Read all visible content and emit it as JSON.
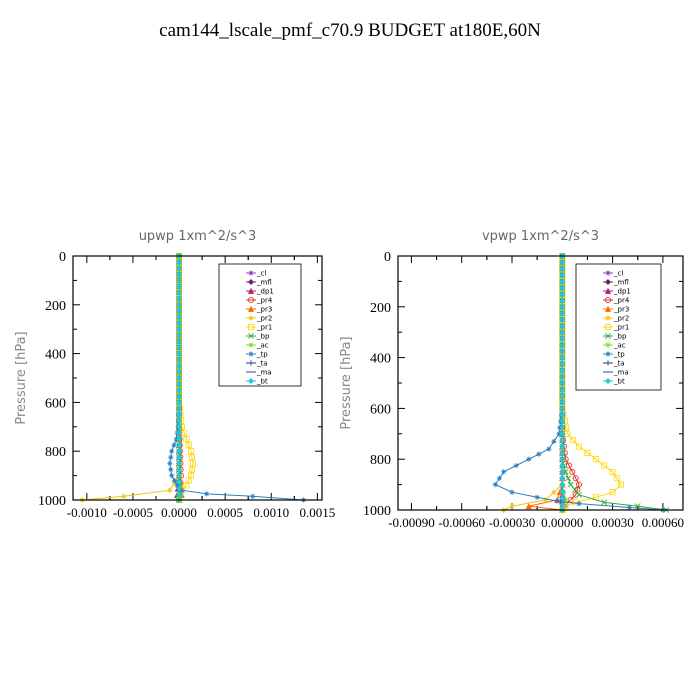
{
  "title": "cam144_lscale_pmf_c70.9  BUDGET at180E,60N",
  "chart_data": [
    {
      "type": "line",
      "title": "upwp  1xm^2/s^3",
      "xlabel": "",
      "ylabel": "Pressure [hPa]",
      "xlim": [
        -0.00115,
        0.00155
      ],
      "ylim": [
        1000,
        0
      ],
      "xticks": [
        -0.001,
        -0.0005,
        0.0,
        0.0005,
        0.001,
        0.0015
      ],
      "xtick_labels": [
        "-0.0010",
        "-0.0005",
        "0.0000",
        "0.0005",
        "0.0010",
        "0.0015"
      ],
      "yticks": [
        0,
        200,
        400,
        600,
        800,
        1000
      ],
      "ytick_labels": [
        "0",
        "200",
        "400",
        "600",
        "800",
        "1000"
      ],
      "legend": "top-right",
      "series": [
        {
          "name": "_cl",
          "color": "#9b30c8",
          "marker": "star",
          "x": [
            0,
            0,
            0,
            0,
            0,
            0,
            0,
            0,
            0,
            0,
            0
          ],
          "y": [
            0,
            100,
            200,
            300,
            400,
            500,
            600,
            700,
            800,
            900,
            1000
          ]
        },
        {
          "name": "_mfl",
          "color": "#6b1f6b",
          "marker": "diamond",
          "x": [
            0,
            0,
            0,
            0,
            0,
            0,
            0,
            0,
            0,
            0,
            0
          ],
          "y": [
            0,
            100,
            200,
            300,
            400,
            500,
            600,
            700,
            800,
            900,
            1000
          ]
        },
        {
          "name": "_dp1",
          "color": "#b0226b",
          "marker": "triangle",
          "x": [
            0,
            0,
            0,
            0,
            0,
            0,
            0,
            0,
            0,
            0,
            -2e-05,
            0
          ],
          "y": [
            0,
            100,
            200,
            300,
            400,
            500,
            600,
            700,
            800,
            900,
            980,
            1000
          ]
        },
        {
          "name": "_pr4",
          "color": "#e0301e",
          "marker": "circle",
          "x": [
            0,
            0,
            0,
            0,
            0,
            0,
            0,
            0,
            1e-05,
            2e-05,
            1e-05,
            0
          ],
          "y": [
            0,
            100,
            200,
            300,
            400,
            500,
            600,
            700,
            800,
            900,
            960,
            1000
          ]
        },
        {
          "name": "_pr3",
          "color": "#ff6a00",
          "marker": "triangle",
          "x": [
            0,
            0,
            0,
            0,
            0,
            0,
            0,
            0,
            0,
            0,
            3e-05,
            0
          ],
          "y": [
            0,
            100,
            200,
            300,
            400,
            500,
            600,
            700,
            800,
            900,
            980,
            1000
          ]
        },
        {
          "name": "_pr2",
          "color": "#f5c400",
          "marker": "star",
          "x": [
            0,
            0,
            0,
            0,
            0,
            0,
            0,
            0,
            0,
            0,
            -0.0001,
            -0.0006,
            -0.00105
          ],
          "y": [
            0,
            100,
            200,
            300,
            400,
            500,
            600,
            700,
            800,
            900,
            960,
            985,
            1000
          ]
        },
        {
          "name": "_pr1",
          "color": "#ffd700",
          "marker": "square",
          "x": [
            0,
            0,
            0,
            0,
            0,
            0,
            0,
            3e-05,
            8e-05,
            0.00013,
            0.00015,
            0.00013,
            8e-05,
            3e-05,
            1e-05,
            0
          ],
          "y": [
            0,
            100,
            200,
            300,
            400,
            500,
            600,
            700,
            750,
            800,
            850,
            900,
            940,
            960,
            980,
            1000
          ]
        },
        {
          "name": "_bp",
          "color": "#33aa33",
          "marker": "cross",
          "x": [
            0,
            0,
            0,
            0,
            0,
            0,
            0,
            0,
            0,
            0,
            2e-05,
            0
          ],
          "y": [
            0,
            100,
            200,
            300,
            400,
            500,
            600,
            700,
            800,
            900,
            980,
            1000
          ]
        },
        {
          "name": "_ac",
          "color": "#77dd33",
          "marker": "star",
          "x": [
            0,
            0,
            0,
            0,
            0,
            0,
            0,
            0,
            0,
            0,
            1e-05,
            0
          ],
          "y": [
            0,
            100,
            200,
            300,
            400,
            500,
            600,
            700,
            800,
            900,
            980,
            1000
          ]
        },
        {
          "name": "_tp",
          "color": "#2a7fc0",
          "marker": "star",
          "x": [
            0,
            0,
            0,
            0,
            0,
            0,
            0,
            -1e-05,
            -3e-05,
            -8e-05,
            -0.0001,
            -8e-05,
            -2e-05,
            3e-05,
            0.0003,
            0.0008,
            0.00135
          ],
          "y": [
            0,
            100,
            200,
            300,
            400,
            500,
            600,
            700,
            750,
            800,
            850,
            900,
            940,
            960,
            975,
            985,
            1000
          ]
        },
        {
          "name": "_ta",
          "color": "#1a3a8a",
          "marker": "plus",
          "x": [
            0,
            0,
            0,
            0,
            0,
            0,
            0,
            0,
            0,
            0,
            0,
            0
          ],
          "y": [
            0,
            100,
            200,
            300,
            400,
            500,
            600,
            700,
            800,
            900,
            980,
            1000
          ]
        },
        {
          "name": "_ma",
          "color": "#1f4fbf",
          "marker": "dash",
          "x": [
            0,
            0,
            0,
            0,
            0,
            0,
            0,
            0,
            0,
            0,
            0,
            0
          ],
          "y": [
            0,
            100,
            200,
            300,
            400,
            500,
            600,
            700,
            800,
            900,
            980,
            1000
          ]
        },
        {
          "name": "_bt",
          "color": "#1ec8e6",
          "marker": "diamond",
          "x": [
            0,
            0,
            0,
            0,
            0,
            0,
            0,
            0,
            0,
            0,
            0,
            0
          ],
          "y": [
            0,
            100,
            200,
            300,
            400,
            500,
            600,
            700,
            800,
            900,
            980,
            1000
          ]
        }
      ]
    },
    {
      "type": "line",
      "title": "vpwp  1xm^2/s^3",
      "xlabel": "",
      "ylabel": "Pressure [hPa]",
      "xlim": [
        -0.00098,
        0.00072
      ],
      "ylim": [
        1000,
        0
      ],
      "xticks": [
        -0.0009,
        -0.0006,
        -0.0003,
        0.0,
        0.0003,
        0.0006
      ],
      "xtick_labels": [
        "-0.00090",
        "-0.00060",
        "-0.00030",
        "0.00000",
        "0.00030",
        "0.00060"
      ],
      "yticks": [
        0,
        200,
        400,
        600,
        800,
        1000
      ],
      "ytick_labels": [
        "0",
        "200",
        "400",
        "600",
        "800",
        "1000"
      ],
      "legend": "top-right",
      "series": [
        {
          "name": "_cl",
          "color": "#9b30c8",
          "marker": "star",
          "x": [
            0,
            0,
            0,
            0,
            0,
            0,
            0,
            0,
            0,
            0,
            0
          ],
          "y": [
            0,
            100,
            200,
            300,
            400,
            500,
            600,
            700,
            800,
            900,
            1000
          ]
        },
        {
          "name": "_mfl",
          "color": "#6b1f6b",
          "marker": "diamond",
          "x": [
            0,
            0,
            0,
            0,
            0,
            0,
            0,
            0,
            0,
            0,
            0
          ],
          "y": [
            0,
            100,
            200,
            300,
            400,
            500,
            600,
            700,
            800,
            900,
            1000
          ]
        },
        {
          "name": "_dp1",
          "color": "#b0226b",
          "marker": "triangle",
          "x": [
            0,
            0,
            0,
            0,
            0,
            0,
            0,
            0,
            0,
            0,
            0,
            0
          ],
          "y": [
            0,
            100,
            200,
            300,
            400,
            500,
            600,
            700,
            800,
            900,
            980,
            1000
          ]
        },
        {
          "name": "_pr4",
          "color": "#e0301e",
          "marker": "circle",
          "x": [
            0,
            0,
            0,
            0,
            0,
            0,
            0,
            0,
            2e-05,
            6e-05,
            0.0001,
            8e-05,
            2e-05,
            0
          ],
          "y": [
            0,
            100,
            200,
            300,
            400,
            500,
            600,
            700,
            800,
            850,
            900,
            940,
            980,
            1000
          ]
        },
        {
          "name": "_pr3",
          "color": "#ff6a00",
          "marker": "triangle",
          "x": [
            0,
            0,
            0,
            0,
            0,
            0,
            0,
            0,
            0,
            0,
            -3e-05,
            -0.0002,
            0
          ],
          "y": [
            0,
            100,
            200,
            300,
            400,
            500,
            600,
            700,
            800,
            900,
            960,
            985,
            1000
          ]
        },
        {
          "name": "_pr2",
          "color": "#f5c400",
          "marker": "star",
          "x": [
            0,
            0,
            0,
            0,
            0,
            0,
            0,
            0,
            0,
            0,
            -0.0001,
            -0.0003,
            -0.00035
          ],
          "y": [
            0,
            100,
            200,
            300,
            400,
            500,
            600,
            700,
            800,
            900,
            960,
            985,
            1000
          ]
        },
        {
          "name": "_pr1",
          "color": "#ffd700",
          "marker": "square",
          "x": [
            0,
            0,
            0,
            0,
            0,
            0,
            0,
            3e-05,
            0.0001,
            0.0002,
            0.0003,
            0.00035,
            0.0003,
            0.0002,
            8e-05,
            2e-05,
            0
          ],
          "y": [
            0,
            100,
            200,
            300,
            400,
            500,
            600,
            700,
            750,
            800,
            850,
            900,
            930,
            950,
            970,
            985,
            1000
          ]
        },
        {
          "name": "_bp",
          "color": "#33aa33",
          "marker": "cross",
          "x": [
            0,
            0,
            0,
            0,
            0,
            0,
            0,
            0,
            0,
            2e-05,
            5e-05,
            0.0001,
            0.00025,
            0.00045,
            0.00062
          ],
          "y": [
            0,
            100,
            200,
            300,
            400,
            500,
            600,
            700,
            800,
            850,
            900,
            940,
            970,
            985,
            1000
          ]
        },
        {
          "name": "_ac",
          "color": "#77dd33",
          "marker": "star",
          "x": [
            0,
            0,
            0,
            0,
            0,
            0,
            0,
            0,
            0,
            0,
            2e-05,
            1e-05,
            0
          ],
          "y": [
            0,
            100,
            200,
            300,
            400,
            500,
            600,
            700,
            800,
            900,
            960,
            985,
            1000
          ]
        },
        {
          "name": "_tp",
          "color": "#2a7fc0",
          "marker": "star",
          "x": [
            0,
            0,
            0,
            0,
            0,
            0,
            0,
            -2e-05,
            -8e-05,
            -0.0002,
            -0.00035,
            -0.0004,
            -0.0003,
            -0.00015,
            -3e-05,
            0.0001,
            0.0004,
            0.0006
          ],
          "y": [
            0,
            100,
            200,
            300,
            400,
            500,
            600,
            700,
            760,
            800,
            850,
            900,
            930,
            950,
            965,
            975,
            990,
            1000
          ]
        },
        {
          "name": "_ta",
          "color": "#1a3a8a",
          "marker": "plus",
          "x": [
            0,
            0,
            0,
            0,
            0,
            0,
            0,
            0,
            0,
            0,
            0,
            0
          ],
          "y": [
            0,
            100,
            200,
            300,
            400,
            500,
            600,
            700,
            800,
            900,
            980,
            1000
          ]
        },
        {
          "name": "_ma",
          "color": "#1f4fbf",
          "marker": "dash",
          "x": [
            0,
            0,
            0,
            0,
            0,
            0,
            0,
            0,
            0,
            0,
            0,
            0
          ],
          "y": [
            0,
            100,
            200,
            300,
            400,
            500,
            600,
            700,
            800,
            900,
            980,
            1000
          ]
        },
        {
          "name": "_bt",
          "color": "#1ec8e6",
          "marker": "diamond",
          "x": [
            0,
            0,
            0,
            0,
            0,
            0,
            0,
            0,
            0,
            0,
            0,
            0
          ],
          "y": [
            0,
            100,
            200,
            300,
            400,
            500,
            600,
            700,
            800,
            900,
            980,
            1000
          ]
        }
      ]
    }
  ]
}
